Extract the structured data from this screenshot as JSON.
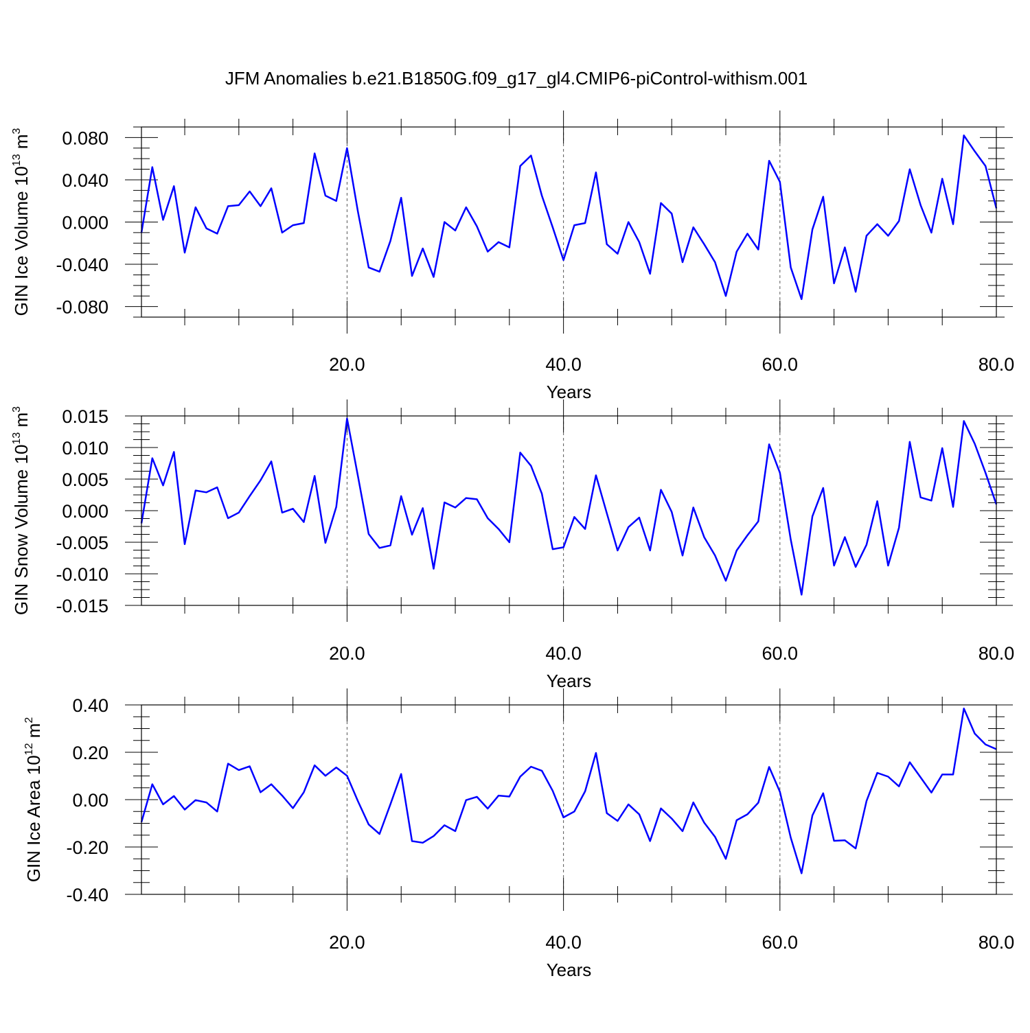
{
  "figure": {
    "title": "JFM Anomalies b.e21.B1850G.f09_g17_gl4.CMIP6-piControl-withism.001"
  },
  "chart_data": [
    {
      "type": "line",
      "ylabel_main": "GIN Ice Volume 10",
      "ylabel_exp": "13",
      "ylabel_unit": " m",
      "ylabel_unit_exp": "3",
      "xlabel": "Years",
      "xlim": [
        1,
        80
      ],
      "ylim": [
        -0.09,
        0.09
      ],
      "xticks": [
        20,
        40,
        60,
        80
      ],
      "xtick_labels": [
        "20.0",
        "40.0",
        "60.0",
        "80.0"
      ],
      "yticks": [
        0.08,
        0.04,
        0.0,
        -0.04,
        -0.08
      ],
      "ytick_labels": [
        "0.080",
        "0.040",
        "0.000",
        "-0.040",
        "-0.080"
      ],
      "line_color": "#0000ff",
      "grid": "dashed vertical at major x ticks",
      "x": [
        1,
        2,
        3,
        4,
        5,
        6,
        7,
        8,
        9,
        10,
        11,
        12,
        13,
        14,
        15,
        16,
        17,
        18,
        19,
        20,
        21,
        22,
        23,
        24,
        25,
        26,
        27,
        28,
        29,
        30,
        31,
        32,
        33,
        34,
        35,
        36,
        37,
        38,
        39,
        40,
        41,
        42,
        43,
        44,
        45,
        46,
        47,
        48,
        49,
        50,
        51,
        52,
        53,
        54,
        55,
        56,
        57,
        58,
        59,
        60,
        61,
        62,
        63,
        64,
        65,
        66,
        67,
        68,
        69,
        70,
        71,
        72,
        73,
        74,
        75,
        76,
        77,
        78,
        79,
        80
      ],
      "y": [
        -0.01,
        0.052,
        0.002,
        0.034,
        -0.029,
        0.014,
        -0.006,
        -0.011,
        0.015,
        0.016,
        0.029,
        0.015,
        0.032,
        -0.01,
        -0.003,
        -0.001,
        0.065,
        0.025,
        0.02,
        0.07,
        0.01,
        -0.043,
        -0.047,
        -0.018,
        0.023,
        -0.051,
        -0.025,
        -0.052,
        0.0,
        -0.008,
        0.014,
        -0.004,
        -0.028,
        -0.019,
        -0.024,
        0.053,
        0.063,
        0.025,
        -0.005,
        -0.036,
        -0.003,
        -0.001,
        0.047,
        -0.021,
        -0.03,
        0.0,
        -0.019,
        -0.049,
        0.018,
        0.008,
        -0.038,
        -0.005,
        -0.021,
        -0.038,
        -0.07,
        -0.028,
        -0.011,
        -0.026,
        0.058,
        0.038,
        -0.043,
        -0.073,
        -0.007,
        0.024,
        -0.058,
        -0.024,
        -0.066,
        -0.013,
        -0.002,
        -0.013,
        0.001,
        0.05,
        0.016,
        -0.01,
        0.041,
        -0.002,
        0.082,
        0.067,
        0.053,
        0.013
      ]
    },
    {
      "type": "line",
      "ylabel_main": "GIN Snow Volume 10",
      "ylabel_exp": "13",
      "ylabel_unit": " m",
      "ylabel_unit_exp": "3",
      "xlabel": "Years",
      "xlim": [
        1,
        80
      ],
      "ylim": [
        -0.015,
        0.015
      ],
      "xticks": [
        20,
        40,
        60,
        80
      ],
      "xtick_labels": [
        "20.0",
        "40.0",
        "60.0",
        "80.0"
      ],
      "yticks": [
        0.015,
        0.01,
        0.005,
        0.0,
        -0.005,
        -0.01,
        -0.015
      ],
      "ytick_labels": [
        "0.015",
        "0.010",
        "0.005",
        "0.000",
        "-0.005",
        "-0.010",
        "-0.015"
      ],
      "line_color": "#0000ff",
      "grid": "dashed vertical at major x ticks",
      "x": [
        1,
        2,
        3,
        4,
        5,
        6,
        7,
        8,
        9,
        10,
        11,
        12,
        13,
        14,
        15,
        16,
        17,
        18,
        19,
        20,
        21,
        22,
        23,
        24,
        25,
        26,
        27,
        28,
        29,
        30,
        31,
        32,
        33,
        34,
        35,
        36,
        37,
        38,
        39,
        40,
        41,
        42,
        43,
        44,
        45,
        46,
        47,
        48,
        49,
        50,
        51,
        52,
        53,
        54,
        55,
        56,
        57,
        58,
        59,
        60,
        61,
        62,
        63,
        64,
        65,
        66,
        67,
        68,
        69,
        70,
        71,
        72,
        73,
        74,
        75,
        76,
        77,
        78,
        79,
        80
      ],
      "y": [
        -0.002,
        0.0083,
        0.004,
        0.0093,
        -0.0053,
        0.0032,
        0.0029,
        0.0037,
        -0.0012,
        -0.0003,
        0.0023,
        0.0048,
        0.0078,
        -0.0003,
        0.0003,
        -0.0018,
        0.0055,
        -0.0051,
        0.0006,
        0.0146,
        0.0055,
        -0.0037,
        -0.0059,
        -0.0055,
        0.0023,
        -0.0038,
        0.0004,
        -0.0092,
        0.0013,
        0.0005,
        0.002,
        0.0018,
        -0.0012,
        -0.0029,
        -0.005,
        0.0092,
        0.0071,
        0.0027,
        -0.0061,
        -0.0058,
        -0.001,
        -0.0029,
        0.0056,
        -0.0004,
        -0.0063,
        -0.0026,
        -0.0011,
        -0.0063,
        0.0033,
        -0.0002,
        -0.0071,
        0.0005,
        -0.0042,
        -0.0071,
        -0.0111,
        -0.0063,
        -0.0039,
        -0.0017,
        0.0105,
        0.006,
        -0.0046,
        -0.0133,
        -0.0009,
        0.0036,
        -0.0087,
        -0.0042,
        -0.0089,
        -0.0054,
        0.0015,
        -0.0087,
        -0.0027,
        0.0109,
        0.0021,
        0.0016,
        0.0099,
        0.0006,
        0.0142,
        0.0106,
        0.006,
        0.001
      ]
    },
    {
      "type": "line",
      "ylabel_main": "GIN Ice Area 10",
      "ylabel_exp": "12",
      "ylabel_unit": " m",
      "ylabel_unit_exp": "2",
      "xlabel": "Years",
      "xlim": [
        1,
        80
      ],
      "ylim": [
        -0.4,
        0.4
      ],
      "xticks": [
        20,
        40,
        60,
        80
      ],
      "xtick_labels": [
        "20.0",
        "40.0",
        "60.0",
        "80.0"
      ],
      "yticks": [
        0.4,
        0.2,
        0.0,
        -0.2,
        -0.4
      ],
      "ytick_labels": [
        "0.40",
        "0.20",
        "0.00",
        "-0.20",
        "-0.40"
      ],
      "line_color": "#0000ff",
      "grid": "dashed vertical at major x ticks",
      "x": [
        1,
        2,
        3,
        4,
        5,
        6,
        7,
        8,
        9,
        10,
        11,
        12,
        13,
        14,
        15,
        16,
        17,
        18,
        19,
        20,
        21,
        22,
        23,
        24,
        25,
        26,
        27,
        28,
        29,
        30,
        31,
        32,
        33,
        34,
        35,
        36,
        37,
        38,
        39,
        40,
        41,
        42,
        43,
        44,
        45,
        46,
        47,
        48,
        49,
        50,
        51,
        52,
        53,
        54,
        55,
        56,
        57,
        58,
        59,
        60,
        61,
        62,
        63,
        64,
        65,
        66,
        67,
        68,
        69,
        70,
        71,
        72,
        73,
        74,
        75,
        76,
        77,
        78,
        79,
        80
      ],
      "y": [
        -0.095,
        0.065,
        -0.02,
        0.015,
        -0.042,
        -0.002,
        -0.012,
        -0.05,
        0.152,
        0.125,
        0.141,
        0.031,
        0.065,
        0.017,
        -0.036,
        0.031,
        0.145,
        0.101,
        0.136,
        0.101,
        -0.006,
        -0.105,
        -0.145,
        -0.02,
        0.108,
        -0.175,
        -0.182,
        -0.154,
        -0.108,
        -0.133,
        -0.002,
        0.012,
        -0.038,
        0.017,
        0.013,
        0.097,
        0.139,
        0.122,
        0.037,
        -0.075,
        -0.05,
        0.035,
        0.197,
        -0.057,
        -0.09,
        -0.02,
        -0.062,
        -0.175,
        -0.037,
        -0.08,
        -0.133,
        -0.012,
        -0.097,
        -0.157,
        -0.25,
        -0.087,
        -0.062,
        -0.013,
        0.138,
        0.033,
        -0.161,
        -0.311,
        -0.067,
        0.027,
        -0.174,
        -0.172,
        -0.206,
        -0.006,
        0.113,
        0.097,
        0.056,
        0.158,
        0.094,
        0.03,
        0.106,
        0.106,
        0.385,
        0.279,
        0.233,
        0.213
      ]
    }
  ]
}
